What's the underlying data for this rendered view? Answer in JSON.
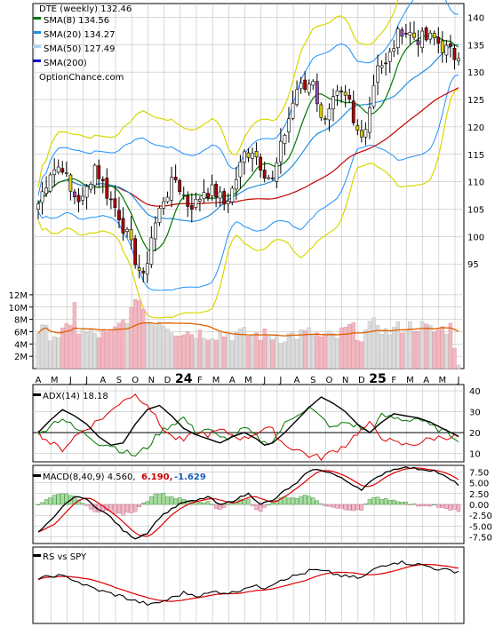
{
  "colors": {
    "sma8": "#007700",
    "sma20": "#1e8fe0",
    "sma50": "#c00000",
    "sma200": "#0000cc",
    "bb": "#d8d800",
    "bb_blue": "#1e90ff",
    "up": "#ffffff",
    "down": "#b00000",
    "volume_up": "#dcdcdc",
    "volume_down": "#f1b8c0",
    "volume_ma": "#e06000",
    "adx": "#000000",
    "pdi": "#007700",
    "mdi": "#dd0000",
    "macd": "#000000",
    "signal": "#dd0000",
    "hist_pos": "#a8dca0",
    "hist_neg": "#f4b8c8",
    "rs": "#000000",
    "rs_ma": "#dd0000",
    "grid": "#b4b4b4"
  },
  "legend": {
    "title": "DTE (weekly) 132.46",
    "sma8": "SMA(8) 134.56",
    "sma20": "SMA(20) 134.27",
    "sma50": "SMA(50) 127.49",
    "sma200": "SMA(200)",
    "source": "OptionChance.com"
  },
  "panels": {
    "adx_label": "ADX(14) 18.18",
    "macd_label": "MACD(8,40,9) 4.560,",
    "macd_signal_value": "6.190,",
    "macd_hist_value": "-1.629",
    "rs_label": "RS vs SPY"
  },
  "x_axis": {
    "labels": [
      "A",
      "M",
      "J",
      "J",
      "A",
      "S",
      "O",
      "N",
      "D",
      "24",
      "F",
      "M",
      "A",
      "M",
      "J",
      "J",
      "A",
      "S",
      "O",
      "N",
      "D",
      "25",
      "F",
      "M",
      "A",
      "M",
      "J"
    ],
    "year_labels": [
      "24",
      "25"
    ]
  },
  "chart_data": {
    "type": "candlestick",
    "title": "DTE (weekly) 132.46",
    "price_axis": {
      "ticks": [
        95,
        100,
        105,
        110,
        115,
        120,
        125,
        130,
        135,
        140
      ],
      "ylim": [
        90.5,
        142.5
      ]
    },
    "volume_axis": {
      "ticks": [
        "2M",
        "4M",
        "6M",
        "8M",
        "10M",
        "12M"
      ],
      "ylim": [
        0,
        13
      ]
    },
    "adx_axis": {
      "ticks": [
        10,
        20,
        30,
        40
      ],
      "ylim": [
        6,
        43
      ]
    },
    "macd_axis": {
      "ticks": [
        "7.50",
        "5.00",
        "2.50",
        "0.00",
        "-2.50",
        "-5.00",
        "-7.50"
      ],
      "ylim": [
        -9,
        9
      ]
    },
    "price_anchors": [
      [
        0,
        106
      ],
      [
        3,
        112
      ],
      [
        6,
        113
      ],
      [
        8,
        108
      ],
      [
        11,
        106.5
      ],
      [
        14,
        113
      ],
      [
        17,
        108
      ],
      [
        20,
        104
      ],
      [
        23,
        98
      ],
      [
        26,
        92
      ],
      [
        28,
        100
      ],
      [
        31,
        107
      ],
      [
        34,
        110.5
      ],
      [
        37,
        106
      ],
      [
        39,
        106
      ],
      [
        41,
        108.5
      ],
      [
        44,
        108
      ],
      [
        46,
        106
      ],
      [
        48,
        108.5
      ],
      [
        51,
        115
      ],
      [
        53,
        116
      ],
      [
        56,
        112
      ],
      [
        58,
        110
      ],
      [
        61,
        119
      ],
      [
        64,
        127
      ],
      [
        66,
        127
      ],
      [
        68,
        129
      ],
      [
        70,
        121
      ],
      [
        72,
        124
      ],
      [
        74,
        125.5
      ],
      [
        77,
        124
      ],
      [
        78,
        120
      ],
      [
        80,
        118
      ],
      [
        82,
        124
      ],
      [
        84,
        132
      ],
      [
        86,
        131
      ],
      [
        88,
        135
      ],
      [
        90,
        138
      ],
      [
        93,
        136.5
      ],
      [
        95,
        136
      ],
      [
        98,
        136
      ],
      [
        101,
        134
      ],
      [
        104,
        132.46
      ]
    ],
    "volume_anchors": [
      [
        0,
        6.2
      ],
      [
        5,
        5.5
      ],
      [
        8,
        6.4
      ],
      [
        9,
        11.5
      ],
      [
        10,
        6.0
      ],
      [
        13,
        5.6
      ],
      [
        18,
        5.4
      ],
      [
        22,
        8.5
      ],
      [
        24,
        10.0
      ],
      [
        25,
        12.0
      ],
      [
        27,
        7.5
      ],
      [
        30,
        8.0
      ],
      [
        34,
        6.2
      ],
      [
        40,
        5.8
      ],
      [
        45,
        5.6
      ],
      [
        50,
        5.6
      ],
      [
        55,
        5.5
      ],
      [
        60,
        5.2
      ],
      [
        64,
        5.5
      ],
      [
        68,
        5.8
      ],
      [
        70,
        5.0
      ],
      [
        74,
        5.2
      ],
      [
        77,
        6.7
      ],
      [
        80,
        5.4
      ],
      [
        84,
        7.6
      ],
      [
        86,
        5.8
      ],
      [
        90,
        6.8
      ],
      [
        94,
        7.0
      ],
      [
        98,
        6.0
      ],
      [
        102,
        6.8
      ],
      [
        104,
        1.5
      ]
    ],
    "macd_anchors": [
      [
        0,
        -6.5
      ],
      [
        4,
        -3
      ],
      [
        7,
        0.5
      ],
      [
        10,
        2
      ],
      [
        12,
        1
      ],
      [
        15,
        -1
      ],
      [
        18,
        -3
      ],
      [
        21,
        -6
      ],
      [
        24,
        -7.8
      ],
      [
        27,
        -6.5
      ],
      [
        30,
        -3
      ],
      [
        33,
        -1
      ],
      [
        36,
        0.5
      ],
      [
        39,
        0.8
      ],
      [
        42,
        1.8
      ],
      [
        45,
        -0.2
      ],
      [
        48,
        0.8
      ],
      [
        52,
        2.5
      ],
      [
        55,
        0.2
      ],
      [
        58,
        0.8
      ],
      [
        61,
        3.2
      ],
      [
        64,
        4.8
      ],
      [
        67,
        7.8
      ],
      [
        70,
        8
      ],
      [
        73,
        7
      ],
      [
        76,
        5.5
      ],
      [
        80,
        3.5
      ],
      [
        82,
        5
      ],
      [
        86,
        7.5
      ],
      [
        90,
        8.6
      ],
      [
        94,
        8.2
      ],
      [
        98,
        7.8
      ],
      [
        101,
        6.2
      ],
      [
        104,
        4.56
      ]
    ],
    "adx_anchors": [
      [
        0,
        20
      ],
      [
        3,
        26
      ],
      [
        6,
        31
      ],
      [
        9,
        28
      ],
      [
        12,
        24
      ],
      [
        15,
        18
      ],
      [
        18,
        14
      ],
      [
        21,
        15
      ],
      [
        24,
        24
      ],
      [
        27,
        31
      ],
      [
        30,
        33
      ],
      [
        33,
        28
      ],
      [
        36,
        22
      ],
      [
        39,
        19
      ],
      [
        42,
        17
      ],
      [
        45,
        15
      ],
      [
        48,
        18
      ],
      [
        51,
        20
      ],
      [
        54,
        17
      ],
      [
        56,
        14
      ],
      [
        58,
        15
      ],
      [
        61,
        20
      ],
      [
        64,
        26
      ],
      [
        67,
        32
      ],
      [
        70,
        37
      ],
      [
        73,
        34
      ],
      [
        76,
        30
      ],
      [
        79,
        24
      ],
      [
        82,
        20
      ],
      [
        85,
        25
      ],
      [
        88,
        29
      ],
      [
        91,
        28
      ],
      [
        94,
        27
      ],
      [
        97,
        25
      ],
      [
        100,
        22
      ],
      [
        104,
        18.18
      ]
    ],
    "pdi_anchors": [
      [
        0,
        18
      ],
      [
        3,
        24
      ],
      [
        6,
        27
      ],
      [
        9,
        22
      ],
      [
        12,
        19
      ],
      [
        15,
        15
      ],
      [
        18,
        14
      ],
      [
        21,
        11
      ],
      [
        24,
        9
      ],
      [
        27,
        13
      ],
      [
        30,
        20
      ],
      [
        33,
        24
      ],
      [
        36,
        27
      ],
      [
        39,
        20
      ],
      [
        42,
        22
      ],
      [
        45,
        17
      ],
      [
        48,
        18
      ],
      [
        51,
        22
      ],
      [
        54,
        18
      ],
      [
        56,
        15
      ],
      [
        58,
        16
      ],
      [
        61,
        24
      ],
      [
        64,
        29
      ],
      [
        67,
        32
      ],
      [
        70,
        27
      ],
      [
        73,
        22
      ],
      [
        76,
        25
      ],
      [
        79,
        23
      ],
      [
        82,
        20
      ],
      [
        85,
        28
      ],
      [
        88,
        27
      ],
      [
        91,
        26
      ],
      [
        94,
        27
      ],
      [
        97,
        23
      ],
      [
        100,
        21
      ],
      [
        104,
        17
      ]
    ],
    "mdi_anchors": [
      [
        0,
        20
      ],
      [
        3,
        15
      ],
      [
        6,
        12
      ],
      [
        9,
        18
      ],
      [
        12,
        22
      ],
      [
        15,
        26
      ],
      [
        18,
        30
      ],
      [
        21,
        36
      ],
      [
        24,
        38
      ],
      [
        27,
        34
      ],
      [
        30,
        24
      ],
      [
        33,
        18
      ],
      [
        36,
        16
      ],
      [
        39,
        20
      ],
      [
        42,
        19
      ],
      [
        45,
        21
      ],
      [
        48,
        19
      ],
      [
        51,
        17
      ],
      [
        54,
        20
      ],
      [
        56,
        22
      ],
      [
        58,
        21
      ],
      [
        61,
        14
      ],
      [
        64,
        12
      ],
      [
        67,
        9
      ],
      [
        70,
        8
      ],
      [
        73,
        11
      ],
      [
        76,
        14
      ],
      [
        79,
        20
      ],
      [
        82,
        24
      ],
      [
        85,
        18
      ],
      [
        88,
        15
      ],
      [
        91,
        14
      ],
      [
        94,
        15
      ],
      [
        97,
        17
      ],
      [
        100,
        18
      ],
      [
        104,
        18
      ]
    ],
    "rs_anchors": [
      [
        0,
        60
      ],
      [
        4,
        66
      ],
      [
        8,
        62
      ],
      [
        12,
        50
      ],
      [
        16,
        42
      ],
      [
        20,
        36
      ],
      [
        24,
        28
      ],
      [
        28,
        22
      ],
      [
        32,
        30
      ],
      [
        36,
        40
      ],
      [
        40,
        36
      ],
      [
        44,
        42
      ],
      [
        48,
        40
      ],
      [
        52,
        50
      ],
      [
        56,
        48
      ],
      [
        60,
        60
      ],
      [
        64,
        66
      ],
      [
        68,
        74
      ],
      [
        72,
        70
      ],
      [
        76,
        64
      ],
      [
        80,
        62
      ],
      [
        84,
        78
      ],
      [
        88,
        86
      ],
      [
        92,
        84
      ],
      [
        96,
        80
      ],
      [
        100,
        74
      ],
      [
        104,
        72
      ]
    ]
  }
}
